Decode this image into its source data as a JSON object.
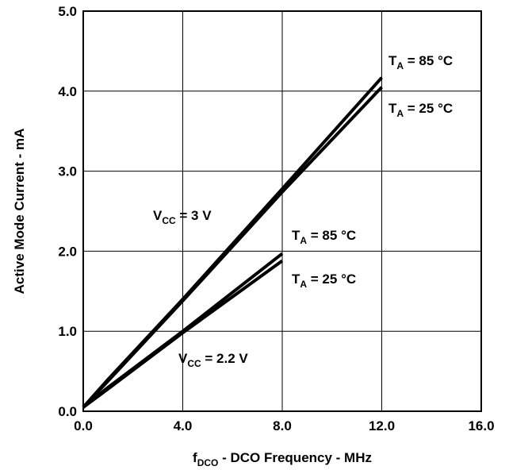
{
  "chart_data": {
    "type": "line",
    "title": "",
    "xlabel": {
      "main": "f",
      "sub": "DCO",
      "rest": " - DCO Frequency - MHz"
    },
    "ylabel": "Active Mode Current - mA",
    "xlim": [
      0,
      16
    ],
    "ylim": [
      0,
      5
    ],
    "x_ticks": [
      "0.0",
      "4.0",
      "8.0",
      "12.0",
      "16.0"
    ],
    "y_ticks": [
      "0.0",
      "1.0",
      "2.0",
      "3.0",
      "4.0",
      "5.0"
    ],
    "grid": true,
    "series": [
      {
        "x": [
          0,
          1,
          4,
          8,
          12
        ],
        "y": [
          0.05,
          0.4,
          1.4,
          2.78,
          4.17
        ]
      },
      {
        "x": [
          0,
          1,
          4,
          8,
          12
        ],
        "y": [
          0.05,
          0.38,
          1.38,
          2.74,
          4.05
        ]
      },
      {
        "x": [
          0,
          1,
          4,
          8
        ],
        "y": [
          0.05,
          0.3,
          1.0,
          1.97
        ]
      },
      {
        "x": [
          0,
          1,
          4,
          8
        ],
        "y": [
          0.05,
          0.28,
          0.98,
          1.88
        ]
      }
    ],
    "annotations": [
      {
        "main": "T",
        "sub": "A",
        "rest": " = 85 °C"
      },
      {
        "main": "T",
        "sub": "A",
        "rest": " = 25 °C"
      },
      {
        "main": "V",
        "sub": "CC",
        "rest": " = 3 V"
      },
      {
        "main": "T",
        "sub": "A",
        "rest": " = 85 °C"
      },
      {
        "main": "T",
        "sub": "A",
        "rest": " = 25 °C"
      },
      {
        "main": "V",
        "sub": "CC",
        "rest": " = 2.2 V"
      }
    ]
  }
}
